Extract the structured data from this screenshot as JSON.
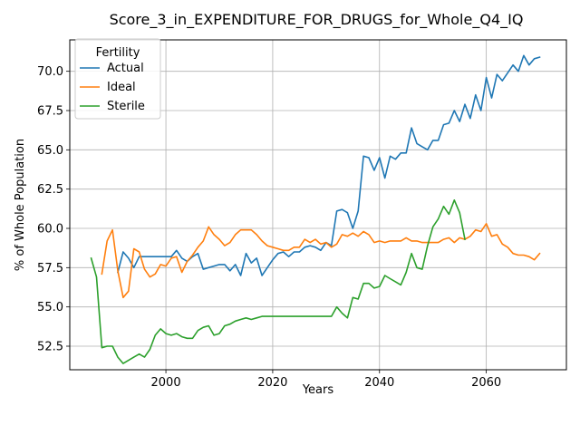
{
  "chart_data": {
    "type": "line",
    "title": "Score_3_in_EXPENDITURE_FOR_DRUGS_for_Whole_Q4_IQ",
    "xlabel": "Years",
    "ylabel": "% of Whole Population",
    "xlim": [
      1982,
      2075
    ],
    "ylim": [
      51.0,
      72.0
    ],
    "x_ticks": [
      2000,
      2020,
      2040,
      2060
    ],
    "x_tick_labels": [
      "2000",
      "2020",
      "2040",
      "2060"
    ],
    "y_ticks": [
      52.5,
      55.0,
      57.5,
      60.0,
      62.5,
      65.0,
      67.5,
      70.0
    ],
    "y_tick_labels": [
      "52.5",
      "55.0",
      "57.5",
      "60.0",
      "62.5",
      "65.0",
      "67.5",
      "70.0"
    ],
    "grid": true,
    "legend": {
      "title": "Fertility",
      "placement": "top-left"
    },
    "series": [
      {
        "name": "Actual",
        "color": "#1f77b4",
        "x": [
          1991,
          1992,
          1993,
          1994,
          1995,
          1996,
          1997,
          1998,
          1999,
          2000,
          2001,
          2002,
          2003,
          2004,
          2005,
          2006,
          2007,
          2008,
          2009,
          2010,
          2011,
          2012,
          2013,
          2014,
          2015,
          2016,
          2017,
          2018,
          2019,
          2020,
          2021,
          2022,
          2023,
          2024,
          2025,
          2026,
          2027,
          2028,
          2029,
          2030,
          2031,
          2032,
          2033,
          2034,
          2035,
          2036,
          2037,
          2038,
          2039,
          2040,
          2041,
          2042,
          2043,
          2044,
          2045,
          2046,
          2047,
          2048,
          2049,
          2050,
          2051,
          2052,
          2053,
          2054,
          2055,
          2056,
          2057,
          2058,
          2059,
          2060,
          2061,
          2062,
          2063,
          2064,
          2065,
          2066,
          2067,
          2068,
          2069,
          2070
        ],
        "values": [
          57.2,
          58.5,
          58.1,
          57.5,
          58.2,
          58.2,
          58.2,
          58.2,
          58.2,
          58.2,
          58.2,
          58.6,
          58.1,
          57.9,
          58.2,
          58.4,
          57.4,
          57.5,
          57.6,
          57.7,
          57.7,
          57.3,
          57.7,
          57.0,
          58.4,
          57.8,
          58.1,
          57.0,
          57.5,
          58.0,
          58.4,
          58.5,
          58.2,
          58.5,
          58.5,
          58.8,
          58.9,
          58.8,
          58.6,
          59.1,
          58.9,
          61.1,
          61.2,
          61.0,
          60.0,
          61.1,
          64.6,
          64.5,
          63.7,
          64.5,
          63.2,
          64.6,
          64.4,
          64.8,
          64.8,
          66.4,
          65.4,
          65.2,
          65.0,
          65.6,
          65.6,
          66.6,
          66.7,
          67.5,
          66.8,
          67.9,
          67.0,
          68.5,
          67.5,
          69.6,
          68.3,
          69.8,
          69.4,
          69.9,
          70.4,
          70.0,
          71.0,
          70.4,
          70.8,
          70.9
        ]
      },
      {
        "name": "Ideal",
        "color": "#ff7f0e",
        "x": [
          1988,
          1989,
          1990,
          1991,
          1992,
          1993,
          1994,
          1995,
          1996,
          1997,
          1998,
          1999,
          2000,
          2001,
          2002,
          2003,
          2004,
          2005,
          2006,
          2007,
          2008,
          2009,
          2010,
          2011,
          2012,
          2013,
          2014,
          2015,
          2016,
          2017,
          2018,
          2019,
          2020,
          2021,
          2022,
          2023,
          2024,
          2025,
          2026,
          2027,
          2028,
          2029,
          2030,
          2031,
          2032,
          2033,
          2034,
          2035,
          2036,
          2037,
          2038,
          2039,
          2040,
          2041,
          2042,
          2043,
          2044,
          2045,
          2046,
          2047,
          2048,
          2049,
          2050,
          2051,
          2052,
          2053,
          2054,
          2055,
          2056,
          2057,
          2058,
          2059,
          2060,
          2061,
          2062,
          2063,
          2064,
          2065,
          2066,
          2067,
          2068,
          2069,
          2070
        ],
        "values": [
          57.1,
          59.2,
          59.9,
          57.3,
          55.6,
          56.0,
          58.7,
          58.5,
          57.4,
          56.9,
          57.1,
          57.7,
          57.6,
          58.1,
          58.2,
          57.2,
          57.9,
          58.3,
          58.8,
          59.2,
          60.1,
          59.6,
          59.3,
          58.9,
          59.1,
          59.6,
          59.9,
          59.9,
          59.9,
          59.6,
          59.2,
          58.9,
          58.8,
          58.7,
          58.6,
          58.6,
          58.8,
          58.8,
          59.3,
          59.1,
          59.3,
          59.0,
          59.1,
          58.8,
          59.0,
          59.6,
          59.5,
          59.7,
          59.5,
          59.8,
          59.6,
          59.1,
          59.2,
          59.1,
          59.2,
          59.2,
          59.2,
          59.4,
          59.2,
          59.2,
          59.1,
          59.1,
          59.1,
          59.1,
          59.3,
          59.4,
          59.1,
          59.4,
          59.3,
          59.5,
          59.9,
          59.8,
          60.3,
          59.5,
          59.6,
          59.0,
          58.8,
          58.4,
          58.3,
          58.3,
          58.2,
          58.0,
          58.4
        ]
      },
      {
        "name": "Sterile",
        "color": "#2ca02c",
        "x": [
          1986,
          1987,
          1988,
          1989,
          1990,
          1991,
          1992,
          1993,
          1994,
          1995,
          1996,
          1997,
          1998,
          1999,
          2000,
          2001,
          2002,
          2003,
          2004,
          2005,
          2006,
          2007,
          2008,
          2009,
          2010,
          2011,
          2012,
          2013,
          2014,
          2015,
          2016,
          2017,
          2018,
          2019,
          2020,
          2021,
          2022,
          2023,
          2024,
          2025,
          2026,
          2027,
          2028,
          2029,
          2030,
          2031,
          2032,
          2033,
          2034,
          2035,
          2036,
          2037,
          2038,
          2039,
          2040,
          2041,
          2042,
          2043,
          2044,
          2045,
          2046,
          2047,
          2048,
          2049,
          2050,
          2051,
          2052,
          2053,
          2054,
          2055,
          2056
        ],
        "values": [
          58.1,
          56.9,
          52.4,
          52.5,
          52.5,
          51.8,
          51.4,
          51.6,
          51.8,
          52.0,
          51.8,
          52.3,
          53.2,
          53.6,
          53.3,
          53.2,
          53.3,
          53.1,
          53.0,
          53.0,
          53.5,
          53.7,
          53.8,
          53.2,
          53.3,
          53.8,
          53.9,
          54.1,
          54.2,
          54.3,
          54.2,
          54.3,
          54.4,
          54.4,
          54.4,
          54.4,
          54.4,
          54.4,
          54.4,
          54.4,
          54.4,
          54.4,
          54.4,
          54.4,
          54.4,
          54.4,
          55.0,
          54.6,
          54.3,
          55.6,
          55.5,
          56.5,
          56.5,
          56.2,
          56.3,
          57.0,
          56.8,
          56.6,
          56.4,
          57.2,
          58.4,
          57.5,
          57.4,
          58.9,
          60.1,
          60.6,
          61.4,
          60.9,
          61.8,
          61.0,
          59.3
        ]
      }
    ]
  }
}
